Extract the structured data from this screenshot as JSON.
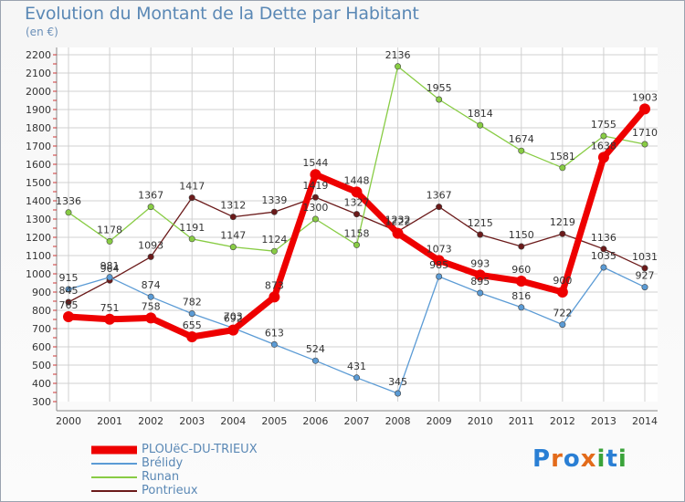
{
  "title": "Evolution du Montant de la Dette par Habitant",
  "subtitle": "(en €)",
  "logo": "Proxiti",
  "chart_data": {
    "type": "line",
    "x": [
      "2000",
      "2001",
      "2002",
      "2003",
      "2004",
      "2005",
      "2006",
      "2007",
      "2008",
      "2009",
      "2010",
      "2011",
      "2012",
      "2013",
      "2014"
    ],
    "yticks": [
      300,
      400,
      500,
      600,
      700,
      800,
      900,
      1000,
      1100,
      1200,
      1300,
      1400,
      1500,
      1600,
      1700,
      1800,
      1900,
      2000,
      2100,
      2200
    ],
    "ylim": [
      300,
      2200
    ],
    "grid": true,
    "legend_position": "bottom-left",
    "series": [
      {
        "name": "Pontrieux",
        "color": "#6b1a1a",
        "values": [
          845,
          964,
          1093,
          1417,
          1312,
          1339,
          1419,
          1327,
          1232,
          1367,
          1215,
          1150,
          1219,
          1136,
          1031
        ]
      },
      {
        "name": "Runan",
        "color": "#88cc44",
        "values": [
          1336,
          1178,
          1367,
          1191,
          1147,
          1124,
          1300,
          1158,
          2136,
          1955,
          1814,
          1674,
          1581,
          1755,
          1710
        ]
      },
      {
        "name": "Brélidy",
        "color": "#5b9bd5",
        "values": [
          915,
          981,
          874,
          782,
          703,
          613,
          524,
          431,
          345,
          985,
          895,
          816,
          722,
          1035,
          927
        ]
      },
      {
        "name": "PLOUëC-DU-TRIEUX",
        "color": "#ee0000",
        "values": [
          765,
          751,
          758,
          655,
          692,
          873,
          1544,
          1448,
          1222,
          1073,
          993,
          960,
          900,
          1638,
          1903
        ]
      }
    ],
    "legend_order": [
      "PLOUëC-DU-TRIEUX",
      "Brélidy",
      "Runan",
      "Pontrieux"
    ]
  }
}
